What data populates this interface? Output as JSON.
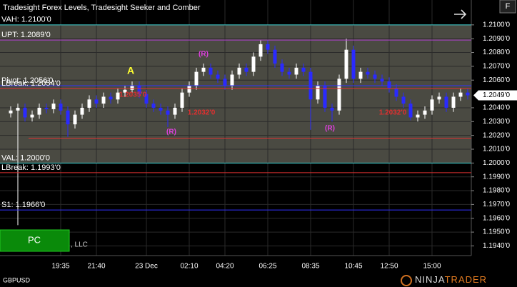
{
  "chart_data": {
    "type": "candlestick",
    "title": "Tradesight Forex Levels, Tradesight Seeker and Comber",
    "symbol": "GBPUSD",
    "button": "PC",
    "footer_text": ", LLC",
    "corner_button": "F",
    "logo": [
      "NINJA",
      "TRADER"
    ],
    "up_color": "#ffffff",
    "down_color": "#2a2aff",
    "shade_color": "#4a4a42",
    "grid": true,
    "ylim": [
      1.1933,
      1.2118
    ],
    "yticks": [
      {
        "value": 1.21,
        "label": "1.2100'0"
      },
      {
        "value": 1.209,
        "label": "1.2090'0"
      },
      {
        "value": 1.208,
        "label": "1.2080'0"
      },
      {
        "value": 1.207,
        "label": "1.2070'0"
      },
      {
        "value": 1.206,
        "label": "1.2060'0"
      },
      {
        "value": 1.204,
        "label": "1.2040'0"
      },
      {
        "value": 1.203,
        "label": "1.2030'0"
      },
      {
        "value": 1.202,
        "label": "1.2020'0"
      },
      {
        "value": 1.201,
        "label": "1.2010'0"
      },
      {
        "value": 1.2,
        "label": "1.2000'0"
      },
      {
        "value": 1.199,
        "label": "1.1990'0"
      },
      {
        "value": 1.198,
        "label": "1.1980'0"
      },
      {
        "value": 1.197,
        "label": "1.1970'0"
      },
      {
        "value": 1.196,
        "label": "1.1960'0"
      },
      {
        "value": 1.195,
        "label": "1.1950'0"
      },
      {
        "value": 1.194,
        "label": "1.1940'0"
      }
    ],
    "last_price": {
      "value": 1.2049,
      "label": "1.2049'0"
    },
    "categories": [
      null,
      null,
      null,
      null,
      null,
      null,
      null,
      "19:35",
      null,
      null,
      null,
      null,
      "21:40",
      null,
      null,
      null,
      null,
      null,
      null,
      "23 Dec",
      null,
      null,
      null,
      null,
      null,
      "02:10",
      null,
      null,
      null,
      null,
      "04:20",
      null,
      null,
      null,
      null,
      null,
      "06:25",
      null,
      null,
      null,
      null,
      null,
      "08:35",
      null,
      null,
      null,
      null,
      null,
      "10:45",
      null,
      null,
      null,
      null,
      "12:50",
      null,
      null,
      null,
      null,
      null,
      "15:00",
      null,
      null,
      null,
      null,
      null
    ],
    "open": [
      1.2036,
      1.2038,
      1.204,
      1.2033,
      1.2035,
      1.204,
      1.2039,
      1.2043,
      1.2038,
      1.2028,
      1.2035,
      1.204,
      1.2046,
      1.2043,
      1.2048,
      1.2046,
      1.2051,
      1.2053,
      1.2056,
      1.205,
      1.2043,
      1.204,
      1.2038,
      1.2035,
      1.204,
      1.2051,
      1.2056,
      1.2066,
      1.2069,
      1.2064,
      1.2061,
      1.2056,
      1.2064,
      1.2069,
      1.2066,
      1.2077,
      1.2086,
      1.2082,
      1.2072,
      1.2066,
      1.2064,
      1.2069,
      1.2066,
      1.2046,
      1.2056,
      1.204,
      1.2038,
      1.2061,
      1.2082,
      1.2061,
      1.2066,
      1.2064,
      1.2061,
      1.2059,
      1.2054,
      1.2048,
      1.2043,
      1.2033,
      1.2035,
      1.2038,
      1.2046,
      1.2048,
      1.204,
      1.2048,
      1.2051
    ],
    "high": [
      1.2041,
      1.2043,
      1.2043,
      1.2038,
      1.2043,
      1.2043,
      1.2046,
      1.2046,
      1.2041,
      1.2038,
      1.2043,
      1.2049,
      1.2049,
      1.2051,
      1.2051,
      1.2054,
      1.2056,
      1.2059,
      1.2059,
      1.2053,
      1.2046,
      1.2043,
      1.2041,
      1.2043,
      1.2054,
      1.2059,
      1.2069,
      1.2072,
      1.2072,
      1.2067,
      1.2064,
      1.2067,
      1.2072,
      1.2072,
      1.208,
      1.2089,
      1.2089,
      1.2085,
      1.2075,
      1.2069,
      1.2072,
      1.2072,
      1.2069,
      1.2059,
      1.2059,
      1.2043,
      1.2064,
      1.209,
      1.2085,
      1.2069,
      1.2069,
      1.2067,
      1.2064,
      1.2062,
      1.2057,
      1.2051,
      1.2046,
      1.2038,
      1.2041,
      1.2049,
      1.2051,
      1.2051,
      1.2051,
      1.2054,
      1.2054
    ],
    "low": [
      1.2033,
      1.1955,
      1.203,
      1.203,
      1.2032,
      1.2036,
      1.2036,
      1.2035,
      1.2019,
      1.2025,
      1.2032,
      1.2037,
      1.204,
      1.204,
      1.2043,
      1.2043,
      1.2048,
      1.205,
      1.2047,
      1.204,
      1.2037,
      1.2035,
      1.2026,
      1.2032,
      1.2037,
      1.2048,
      1.2053,
      1.2063,
      1.2061,
      1.2058,
      1.2053,
      1.2053,
      1.2061,
      1.2063,
      1.2063,
      1.2074,
      1.2079,
      1.2069,
      1.2063,
      1.2061,
      1.2061,
      1.2063,
      1.2024,
      1.2043,
      1.2037,
      1.203,
      1.2035,
      1.2058,
      1.2058,
      1.2058,
      1.2061,
      1.2058,
      1.2056,
      1.2051,
      1.2045,
      1.204,
      1.2031,
      1.203,
      1.2032,
      1.2035,
      1.2043,
      1.2037,
      1.2037,
      1.2045,
      1.2046
    ],
    "close": [
      1.2038,
      1.204,
      1.2033,
      1.2035,
      1.204,
      1.2039,
      1.2043,
      1.2038,
      1.2028,
      1.2035,
      1.204,
      1.2046,
      1.2043,
      1.2048,
      1.2046,
      1.2051,
      1.2053,
      1.2056,
      1.205,
      1.2043,
      1.204,
      1.2038,
      1.2035,
      1.204,
      1.2051,
      1.2056,
      1.2066,
      1.2069,
      1.2064,
      1.2061,
      1.2056,
      1.2064,
      1.2069,
      1.2066,
      1.2077,
      1.2086,
      1.2082,
      1.2072,
      1.2066,
      1.2064,
      1.2069,
      1.2066,
      1.2046,
      1.2056,
      1.204,
      1.2038,
      1.2061,
      1.2082,
      1.2061,
      1.2066,
      1.2064,
      1.2061,
      1.2059,
      1.2054,
      1.2048,
      1.2043,
      1.2033,
      1.2035,
      1.2038,
      1.2046,
      1.2048,
      1.204,
      1.2048,
      1.2051,
      1.2049
    ],
    "levels": [
      {
        "label": "VAH: 1.2100'0",
        "value": 1.21,
        "color": "#40d8d8"
      },
      {
        "label": "UPT: 1.2089'0",
        "value": 1.2089,
        "color": "#b040d0"
      },
      {
        "label": "Pivot: 1.2056'0",
        "value": 1.2056,
        "color": "#3030ff"
      },
      {
        "label": "LBreak: 1.2054'0",
        "value": 1.2054,
        "color": "#e03030"
      },
      {
        "label": "VAL: 1.2000'0",
        "value": 1.2,
        "color": "#40d8d8"
      },
      {
        "label": "LBreak: 1.1993'0",
        "value": 1.1993,
        "color": "#e03030"
      },
      {
        "label": "S1: 1.1966'0",
        "value": 1.1966,
        "color": "#3030ff"
      },
      {
        "value": 1.2018,
        "color": "#e03030"
      }
    ],
    "annotations": [
      "A",
      "(R)",
      "(R)",
      "(R)",
      "1.2035'0",
      "1.2032'0",
      "1.2032'0"
    ]
  }
}
